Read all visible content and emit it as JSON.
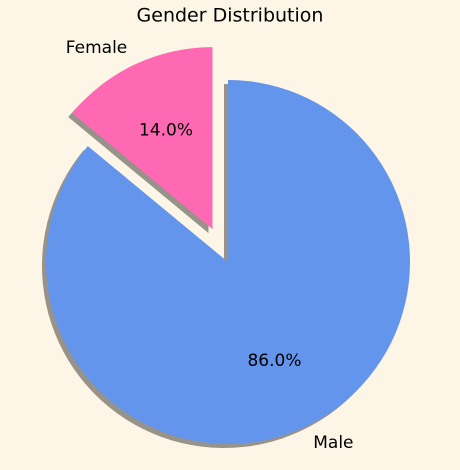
{
  "chart_data": {
    "type": "pie",
    "title": "Gender Distribution",
    "categories": [
      "Female",
      "Male"
    ],
    "values": [
      14.0,
      86.0
    ],
    "value_labels": [
      "14.0%",
      "86.0%"
    ],
    "colors": [
      "#ff69b4",
      "#6495ed"
    ],
    "explode": [
      0.2,
      0
    ],
    "startangle": 90,
    "shadow": true,
    "background": "#fdf5e6"
  }
}
